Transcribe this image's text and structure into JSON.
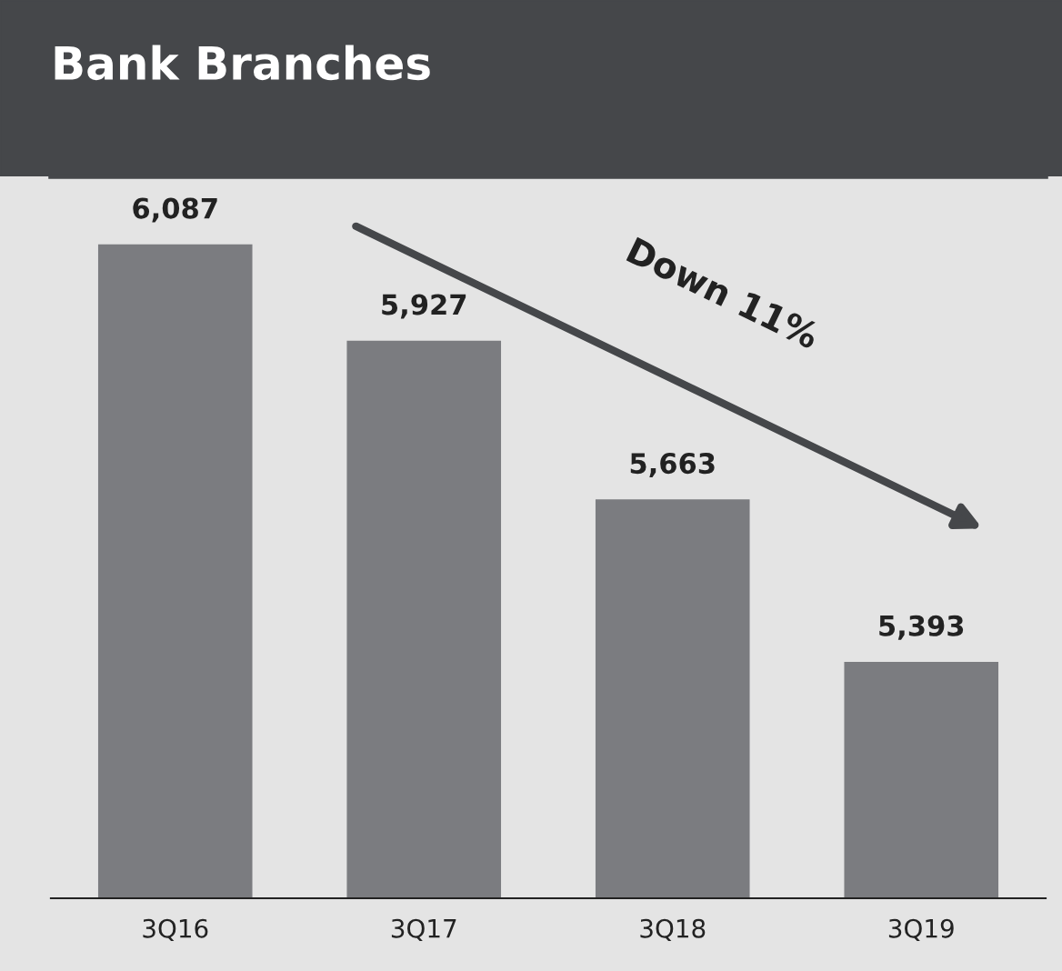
{
  "chart_data": {
    "type": "bar",
    "title": "Bank Branches",
    "categories": [
      "3Q16",
      "3Q17",
      "3Q18",
      "3Q19"
    ],
    "values": [
      6087,
      5927,
      5663,
      5393
    ],
    "value_labels": [
      "6,087",
      "5,927",
      "5,663",
      "5,393"
    ],
    "color": "#7b7c80",
    "ylim": [
      5000,
      6200
    ],
    "tick_labels": "x",
    "grid": false,
    "annotations": [
      "Down 11%"
    ]
  }
}
